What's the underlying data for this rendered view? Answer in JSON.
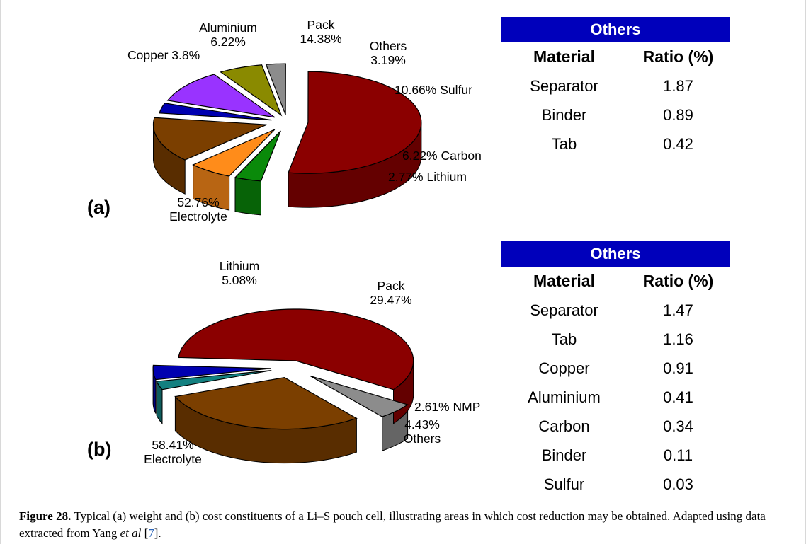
{
  "figure": {
    "panel_a_label": "(a)",
    "panel_b_label": "(b)"
  },
  "chart_data": [
    {
      "type": "pie",
      "slices": [
        {
          "key": "electrolyte",
          "name": "Electrolyte",
          "value": 52.76,
          "color": "#8b0000"
        },
        {
          "key": "copper",
          "name": "Copper",
          "value": 3.8,
          "color": "#0a8a0a"
        },
        {
          "key": "aluminium",
          "name": "Aluminium",
          "value": 6.22,
          "color": "#ff8c1a"
        },
        {
          "key": "pack",
          "name": "Pack",
          "value": 14.38,
          "color": "#7b3f00"
        },
        {
          "key": "others",
          "name": "Others",
          "value": 3.19,
          "color": "#0000b0"
        },
        {
          "key": "sulfur",
          "name": "Sulfur",
          "value": 10.66,
          "color": "#9933ff"
        },
        {
          "key": "carbon",
          "name": "Carbon",
          "value": 6.22,
          "color": "#8a8a00"
        },
        {
          "key": "lithium",
          "name": "Lithium",
          "value": 2.77,
          "color": "#8c8c8c"
        }
      ],
      "labels": {
        "aluminium": [
          "Aluminium",
          "6.22%"
        ],
        "pack": [
          "Pack",
          "14.38%"
        ],
        "others": [
          "Others",
          "3.19%"
        ],
        "copper": [
          "Copper 3.8%"
        ],
        "sulfur": [
          "10.66% Sulfur"
        ],
        "carbon": [
          "6.22% Carbon"
        ],
        "lithium": [
          "2.77% Lithium"
        ],
        "electrolyte": [
          "52.76%",
          "Electrolyte"
        ]
      }
    },
    {
      "type": "pie",
      "slices": [
        {
          "key": "electrolyte",
          "name": "Electrolyte",
          "value": 58.41,
          "color": "#8b0000"
        },
        {
          "key": "lithium",
          "name": "Lithium",
          "value": 5.08,
          "color": "#8c8c8c"
        },
        {
          "key": "pack",
          "name": "Pack",
          "value": 29.47,
          "color": "#7b3f00"
        },
        {
          "key": "nmp",
          "name": "NMP",
          "value": 2.61,
          "color": "#138080"
        },
        {
          "key": "others",
          "name": "Others",
          "value": 4.43,
          "color": "#0000b0"
        }
      ],
      "labels": {
        "lithium": [
          "Lithium",
          "5.08%"
        ],
        "pack": [
          "Pack",
          "29.47%"
        ],
        "nmp": [
          "2.61% NMP"
        ],
        "others": [
          "4.43%",
          "Others"
        ],
        "electrolyte": [
          "58.41%",
          "Electrolyte"
        ]
      }
    }
  ],
  "tables": [
    {
      "title": "Others",
      "headers": [
        "Material",
        "Ratio (%)"
      ],
      "rows": [
        [
          "Separator",
          "1.87"
        ],
        [
          "Binder",
          "0.89"
        ],
        [
          "Tab",
          "0.42"
        ]
      ]
    },
    {
      "title": "Others",
      "headers": [
        "Material",
        "Ratio (%)"
      ],
      "rows": [
        [
          "Separator",
          "1.47"
        ],
        [
          "Tab",
          "1.16"
        ],
        [
          "Copper",
          "0.91"
        ],
        [
          "Aluminium",
          "0.41"
        ],
        [
          "Carbon",
          "0.34"
        ],
        [
          "Binder",
          "0.11"
        ],
        [
          "Sulfur",
          "0.03"
        ]
      ]
    }
  ],
  "caption": {
    "lead": "Figure 28.",
    "text": "Typical (a) weight and (b) cost constituents of a Li–S pouch cell, illustrating areas in which cost reduction may be obtained. Adapted using data extracted from Yang",
    "et_al": "et al",
    "ref_open": " [",
    "ref_num": "7",
    "ref_close": "]."
  }
}
